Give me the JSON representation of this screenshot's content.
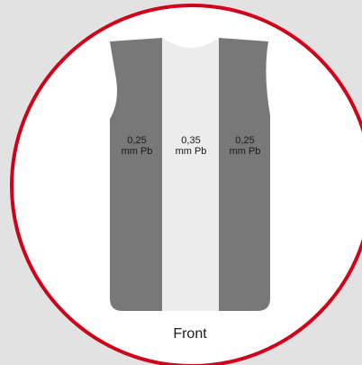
{
  "diagram": {
    "panels": [
      {
        "thickness": "0,25",
        "unit": "mm Pb"
      },
      {
        "thickness": "0,35",
        "unit": "mm Pb"
      },
      {
        "thickness": "0,25",
        "unit": "mm Pb"
      }
    ],
    "caption": "Front"
  }
}
